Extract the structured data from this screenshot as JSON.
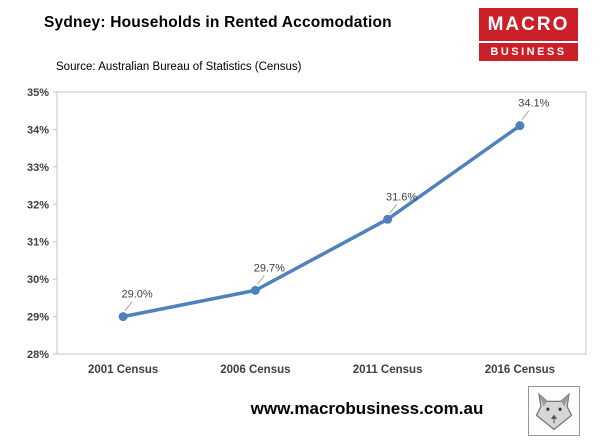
{
  "header": {
    "title": "Sydney: Households in Rented Accomodation",
    "source": "Source: Australian Bureau of Statistics (Census)",
    "logo": {
      "line1": "MACRO",
      "line2": "BUSINESS",
      "color": "#cb2027"
    }
  },
  "chart_data": {
    "type": "line",
    "title": "Sydney: Households in Rented Accomodation",
    "categories": [
      "2001 Census",
      "2006 Census",
      "2011 Census",
      "2016 Census"
    ],
    "values": [
      29.0,
      29.7,
      31.6,
      34.1
    ],
    "data_labels": [
      "29.0%",
      "29.7%",
      "31.6%",
      "34.1%"
    ],
    "xlabel": "",
    "ylabel": "",
    "ylim": [
      28,
      35
    ],
    "ytick_step": 1,
    "ytick_labels": [
      "28%",
      "29%",
      "30%",
      "31%",
      "32%",
      "33%",
      "34%",
      "35%"
    ],
    "line_color": "#4f81bd",
    "marker": "circle",
    "grid": false,
    "legend": false
  },
  "footer": {
    "website": "www.macrobusiness.com.au",
    "logo_alt": "wolf-sketch-logo"
  }
}
